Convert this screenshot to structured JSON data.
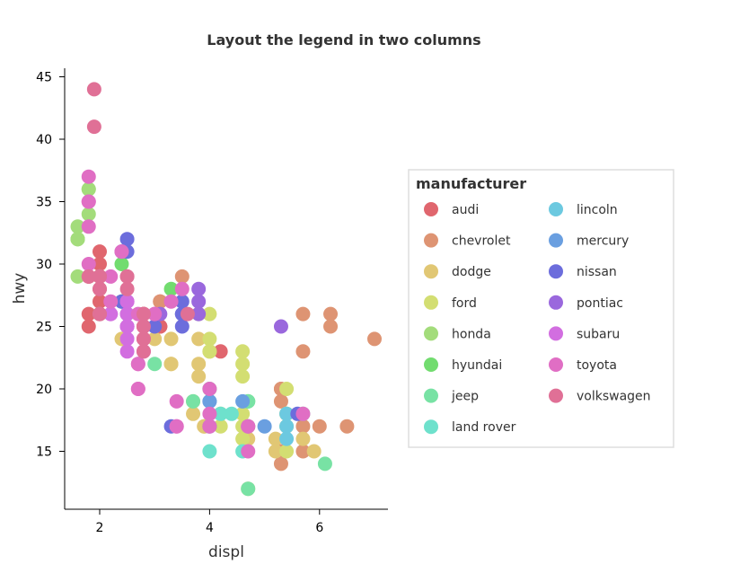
{
  "chart_data": {
    "type": "scatter",
    "title": "Layout the legend in two columns",
    "xlabel": "displ",
    "ylabel": "hwy",
    "xlim": [
      1.4,
      7.2
    ],
    "ylim": [
      10.5,
      46
    ],
    "x_ticks": [
      2,
      4,
      6
    ],
    "y_ticks": [
      15,
      20,
      25,
      30,
      35,
      40,
      45
    ],
    "grid": false,
    "legend": {
      "title": "manufacturer",
      "position": "right",
      "columns": 2
    },
    "series": [
      {
        "name": "audi",
        "color": "#e0666e",
        "points": [
          [
            1.8,
            29
          ],
          [
            1.8,
            29
          ],
          [
            2,
            31
          ],
          [
            2,
            30
          ],
          [
            2.8,
            26
          ],
          [
            2.8,
            26
          ],
          [
            3.1,
            27
          ],
          [
            1.8,
            26
          ],
          [
            1.8,
            25
          ],
          [
            2,
            28
          ],
          [
            2,
            27
          ],
          [
            2.8,
            25
          ],
          [
            2.8,
            25
          ],
          [
            3.1,
            25
          ],
          [
            3.1,
            25
          ],
          [
            2.8,
            24
          ],
          [
            3.1,
            25
          ],
          [
            4.2,
            23
          ]
        ]
      },
      {
        "name": "chevrolet",
        "color": "#de9473",
        "points": [
          [
            5.3,
            20
          ],
          [
            5.3,
            15
          ],
          [
            5.3,
            20
          ],
          [
            5.7,
            17
          ],
          [
            6,
            17
          ],
          [
            5.7,
            26
          ],
          [
            5.7,
            23
          ],
          [
            6.2,
            26
          ],
          [
            6.2,
            25
          ],
          [
            7,
            24
          ],
          [
            5.3,
            19
          ],
          [
            5.3,
            14
          ],
          [
            5.7,
            15
          ],
          [
            6.5,
            17
          ],
          [
            3.1,
            27
          ],
          [
            3.5,
            29
          ]
        ]
      },
      {
        "name": "dodge",
        "color": "#e1c774",
        "points": [
          [
            2.4,
            24
          ],
          [
            3,
            24
          ],
          [
            3.3,
            22
          ],
          [
            3.3,
            22
          ],
          [
            3.3,
            24
          ],
          [
            3.8,
            24
          ],
          [
            3.8,
            22
          ],
          [
            3.8,
            21
          ],
          [
            4,
            23
          ],
          [
            3.7,
            19
          ],
          [
            3.7,
            18
          ],
          [
            3.9,
            17
          ],
          [
            3.9,
            17
          ],
          [
            4.7,
            16
          ],
          [
            4.7,
            17
          ],
          [
            4.7,
            17
          ],
          [
            5.2,
            16
          ],
          [
            5.2,
            15
          ],
          [
            5.7,
            16
          ],
          [
            5.9,
            15
          ],
          [
            4.7,
            12
          ]
        ]
      },
      {
        "name": "ford",
        "color": "#d3de72",
        "points": [
          [
            4.2,
            17
          ],
          [
            4.2,
            18
          ],
          [
            4.6,
            17
          ],
          [
            4.6,
            16
          ],
          [
            4.6,
            18
          ],
          [
            5.4,
            17
          ],
          [
            5.4,
            15
          ],
          [
            4,
            20
          ],
          [
            4,
            23
          ],
          [
            4,
            24
          ],
          [
            4.6,
            21
          ],
          [
            4.6,
            22
          ],
          [
            5.4,
            20
          ],
          [
            3.8,
            26
          ],
          [
            4,
            26
          ],
          [
            4.6,
            23
          ],
          [
            5.4,
            18
          ],
          [
            5.4,
            18
          ]
        ]
      },
      {
        "name": "honda",
        "color": "#a3dc7b",
        "points": [
          [
            1.6,
            33
          ],
          [
            1.6,
            32
          ],
          [
            1.6,
            32
          ],
          [
            1.6,
            29
          ],
          [
            1.6,
            32
          ],
          [
            1.8,
            34
          ],
          [
            1.8,
            36
          ],
          [
            1.8,
            36
          ],
          [
            2,
            29
          ]
        ]
      },
      {
        "name": "hyundai",
        "color": "#72dc6f",
        "points": [
          [
            2,
            26
          ],
          [
            2,
            29
          ],
          [
            2.4,
            27
          ],
          [
            2.4,
            30
          ],
          [
            2.5,
            26
          ],
          [
            2.5,
            26
          ],
          [
            3.3,
            28
          ],
          [
            4.7,
            19
          ]
        ]
      },
      {
        "name": "jeep",
        "color": "#78e2a4",
        "points": [
          [
            3,
            22
          ],
          [
            3.7,
            19
          ],
          [
            4,
            20
          ],
          [
            4.7,
            19
          ],
          [
            4.7,
            12
          ],
          [
            4.7,
            17
          ],
          [
            5.7,
            18
          ],
          [
            6.1,
            14
          ]
        ]
      },
      {
        "name": "land rover",
        "color": "#6ee1cc",
        "points": [
          [
            4,
            15
          ],
          [
            4.2,
            18
          ],
          [
            4.4,
            18
          ],
          [
            4.6,
            15
          ]
        ]
      },
      {
        "name": "lincoln",
        "color": "#6cc9e0",
        "points": [
          [
            5.4,
            18
          ],
          [
            5.4,
            17
          ],
          [
            5.4,
            16
          ]
        ]
      },
      {
        "name": "mercury",
        "color": "#6a9fe0",
        "points": [
          [
            4,
            19
          ],
          [
            4,
            19
          ],
          [
            4.6,
            19
          ],
          [
            5,
            17
          ]
        ]
      },
      {
        "name": "nissan",
        "color": "#6c6ddc",
        "points": [
          [
            2.4,
            31
          ],
          [
            2.4,
            27
          ],
          [
            2.5,
            32
          ],
          [
            2.5,
            31
          ],
          [
            3.5,
            27
          ],
          [
            3.5,
            26
          ],
          [
            3,
            25
          ],
          [
            3.3,
            17
          ],
          [
            3.5,
            25
          ],
          [
            3.5,
            26
          ],
          [
            4,
            17
          ],
          [
            5.6,
            18
          ]
        ]
      },
      {
        "name": "pontiac",
        "color": "#9a68dd",
        "points": [
          [
            3.1,
            26
          ],
          [
            3.8,
            28
          ],
          [
            3.8,
            26
          ],
          [
            3.8,
            27
          ],
          [
            5.3,
            25
          ]
        ]
      },
      {
        "name": "subaru",
        "color": "#d26ee0",
        "points": [
          [
            2.5,
            25
          ],
          [
            2.5,
            24
          ],
          [
            2.5,
            27
          ],
          [
            2.5,
            25
          ],
          [
            2.5,
            26
          ],
          [
            2.5,
            23
          ],
          [
            2.2,
            26
          ],
          [
            2.2,
            26
          ],
          [
            2.5,
            26
          ],
          [
            2.5,
            26
          ],
          [
            2.5,
            25
          ],
          [
            2.5,
            27
          ],
          [
            2.5,
            25
          ],
          [
            2.5,
            27
          ]
        ]
      },
      {
        "name": "toyota",
        "color": "#e06ec4",
        "points": [
          [
            2.7,
            20
          ],
          [
            2.7,
            20
          ],
          [
            3.4,
            19
          ],
          [
            3.4,
            17
          ],
          [
            4,
            20
          ],
          [
            4.7,
            17
          ],
          [
            2.7,
            22
          ],
          [
            2.7,
            22
          ],
          [
            4,
            18
          ],
          [
            4,
            17
          ],
          [
            4.7,
            15
          ],
          [
            4.7,
            17
          ],
          [
            5.7,
            18
          ],
          [
            2.2,
            29
          ],
          [
            2.2,
            27
          ],
          [
            2.4,
            31
          ],
          [
            2.4,
            31
          ],
          [
            3,
            26
          ],
          [
            3,
            26
          ],
          [
            3.5,
            28
          ],
          [
            1.8,
            30
          ],
          [
            1.8,
            33
          ],
          [
            1.8,
            35
          ],
          [
            1.8,
            37
          ],
          [
            1.8,
            35
          ],
          [
            2.7,
            26
          ],
          [
            3.3,
            27
          ],
          [
            3.4,
            17
          ],
          [
            2.8,
            23
          ],
          [
            2.8,
            24
          ]
        ]
      },
      {
        "name": "volkswagen",
        "color": "#e07096",
        "points": [
          [
            1.9,
            44
          ],
          [
            1.9,
            41
          ],
          [
            1.8,
            29
          ],
          [
            2,
            26
          ],
          [
            2.8,
            24
          ],
          [
            2.8,
            26
          ],
          [
            2.5,
            29
          ],
          [
            2.5,
            28
          ],
          [
            2.5,
            29
          ],
          [
            2,
            29
          ],
          [
            2,
            28
          ],
          [
            2,
            29
          ],
          [
            2,
            29
          ],
          [
            2.8,
            23
          ],
          [
            2,
            26
          ],
          [
            2.8,
            25
          ],
          [
            3.6,
            26
          ]
        ]
      }
    ]
  }
}
